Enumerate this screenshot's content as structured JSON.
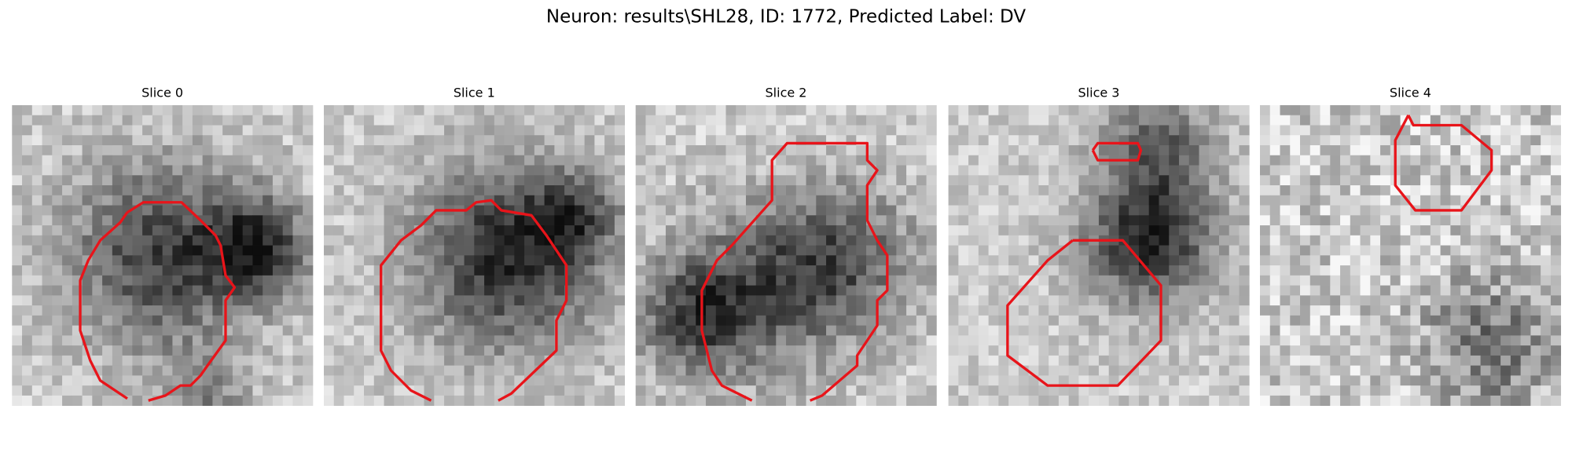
{
  "title": "Neuron: results\\SHL28, ID: 1772, Predicted Label: DV",
  "panels": [
    {
      "title": "Slice 0"
    },
    {
      "title": "Slice 1"
    },
    {
      "title": "Slice 2"
    },
    {
      "title": "Slice 3"
    },
    {
      "title": "Slice 4"
    }
  ]
}
